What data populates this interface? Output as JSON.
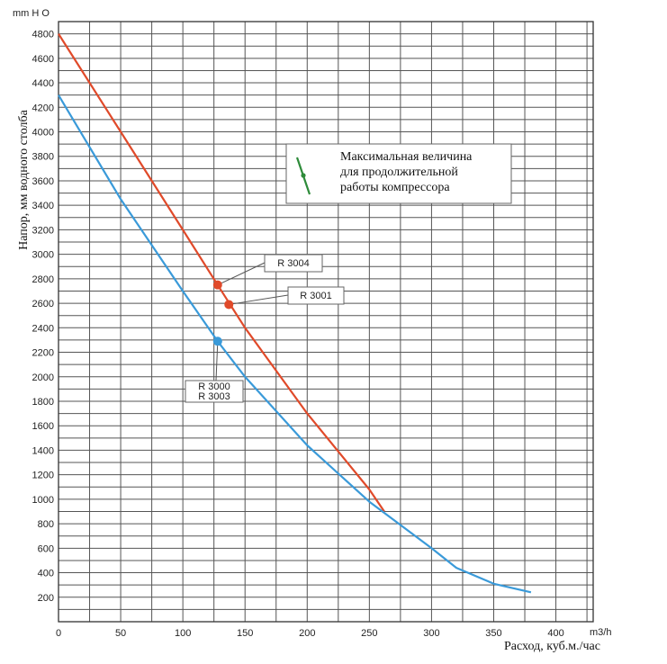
{
  "chart_data": {
    "type": "line",
    "y_unit": "mm H O",
    "x_unit": "m3/h",
    "ylabel": "Напор, мм водного столба",
    "xlabel": "Расход, куб.м./час",
    "xlim": [
      0,
      430
    ],
    "ylim": [
      0,
      4900
    ],
    "x_ticks": [
      0,
      50,
      100,
      150,
      200,
      250,
      300,
      350,
      400
    ],
    "y_ticks": [
      200,
      400,
      600,
      800,
      1000,
      1200,
      1400,
      1600,
      1800,
      2000,
      2200,
      2400,
      2600,
      2800,
      3000,
      3200,
      3400,
      3600,
      3800,
      4000,
      4200,
      4400,
      4600,
      4800
    ],
    "grid": true,
    "series": [
      {
        "color": "#e04a2a",
        "x": [
          0,
          50,
          100,
          128,
          150,
          200,
          250,
          262
        ],
        "y": [
          4800,
          4000,
          3200,
          2750,
          2400,
          1700,
          1080,
          900
        ]
      },
      {
        "color": "#3a9ad9",
        "x": [
          0,
          50,
          100,
          128,
          150,
          200,
          250,
          300,
          320,
          350,
          380
        ],
        "y": [
          4300,
          3450,
          2700,
          2290,
          2000,
          1440,
          980,
          600,
          440,
          310,
          240
        ]
      }
    ],
    "points": [
      {
        "x": 128,
        "y": 2750,
        "color": "#e04a2a",
        "label": "R 3004"
      },
      {
        "x": 137,
        "y": 2590,
        "color": "#e04a2a",
        "label": "R 3001"
      },
      {
        "x": 128,
        "y": 2290,
        "color": "#3a9ad9",
        "label_lines": [
          "R 3000",
          "R 3003"
        ]
      }
    ],
    "legend": {
      "lines": [
        "Максимальная величина",
        "для продолжительной",
        "работы компрессора"
      ],
      "marker_color": "#2e8b3a",
      "position": "upper-right"
    }
  }
}
